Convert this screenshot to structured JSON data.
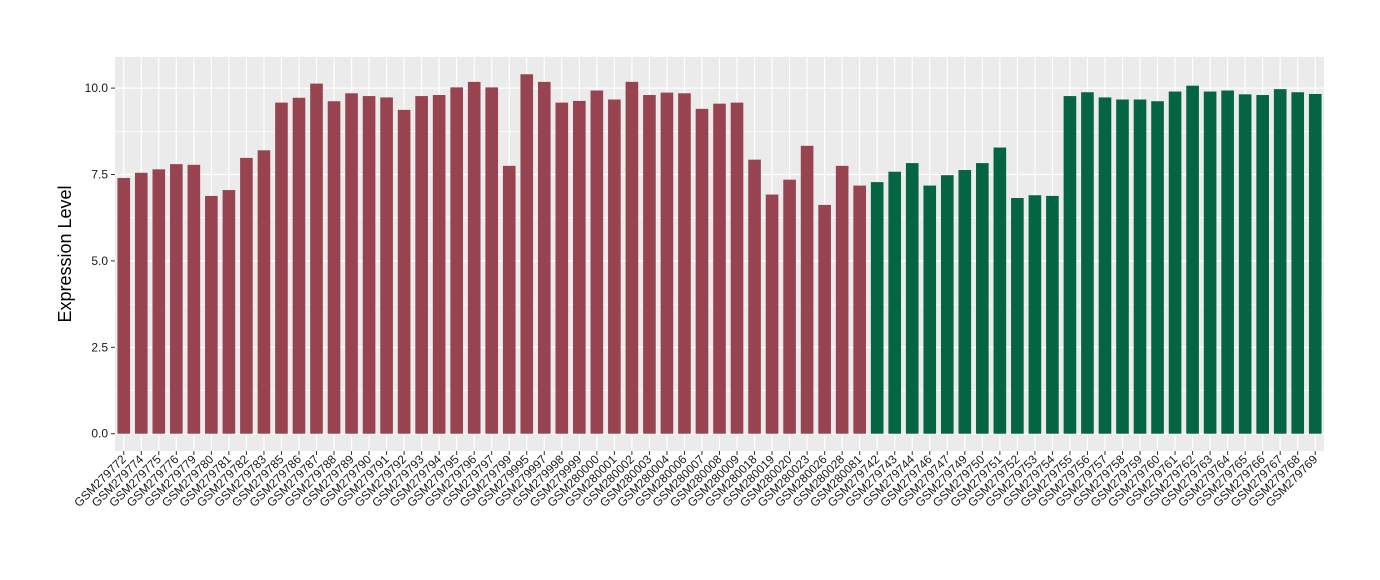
{
  "chart_data": {
    "type": "bar",
    "title": "",
    "xlabel": "",
    "ylabel": "Expression Level",
    "ylim": [
      -0.5,
      10.9
    ],
    "yticks": [
      0.0,
      2.5,
      5.0,
      7.5,
      10.0
    ],
    "ytick_labels": [
      "0.0",
      "2.5",
      "5.0",
      "7.5",
      "10.0"
    ],
    "grid": true,
    "legend": "none",
    "colors": {
      "panel": "#EBEBEB",
      "grid": "#FFFFFF",
      "group1": "#984350",
      "group2": "#046543"
    },
    "categories": [
      "GSM279772",
      "GSM279774",
      "GSM279775",
      "GSM279776",
      "GSM279779",
      "GSM279780",
      "GSM279781",
      "GSM279782",
      "GSM279783",
      "GSM279785",
      "GSM279786",
      "GSM279787",
      "GSM279788",
      "GSM279789",
      "GSM279790",
      "GSM279791",
      "GSM279792",
      "GSM279793",
      "GSM279794",
      "GSM279795",
      "GSM279796",
      "GSM279797",
      "GSM279799",
      "GSM279995",
      "GSM279997",
      "GSM279998",
      "GSM279999",
      "GSM280000",
      "GSM280001",
      "GSM280002",
      "GSM280003",
      "GSM280004",
      "GSM280006",
      "GSM280007",
      "GSM280008",
      "GSM280009",
      "GSM280018",
      "GSM280019",
      "GSM280020",
      "GSM280023",
      "GSM280026",
      "GSM280028",
      "GSM280081",
      "GSM279742",
      "GSM279743",
      "GSM279744",
      "GSM279746",
      "GSM279747",
      "GSM279749",
      "GSM279750",
      "GSM279751",
      "GSM279752",
      "GSM279753",
      "GSM279754",
      "GSM279755",
      "GSM279756",
      "GSM279757",
      "GSM279758",
      "GSM279759",
      "GSM279760",
      "GSM279761",
      "GSM279762",
      "GSM279763",
      "GSM279764",
      "GSM279765",
      "GSM279766",
      "GSM279767",
      "GSM279768",
      "GSM279769"
    ],
    "values": [
      7.4,
      7.55,
      7.65,
      7.8,
      7.78,
      6.88,
      7.05,
      7.98,
      8.2,
      9.58,
      9.72,
      10.13,
      9.62,
      9.85,
      9.77,
      9.73,
      9.37,
      9.77,
      9.8,
      10.02,
      10.18,
      10.02,
      7.75,
      10.4,
      10.18,
      9.58,
      9.63,
      9.93,
      9.67,
      10.18,
      9.8,
      9.87,
      9.85,
      9.4,
      9.55,
      9.58,
      7.93,
      6.92,
      7.35,
      8.33,
      6.62,
      7.75,
      7.18,
      7.28,
      7.58,
      7.83,
      7.18,
      7.48,
      7.63,
      7.83,
      8.28,
      6.82,
      6.9,
      6.88,
      9.77,
      9.88,
      9.73,
      9.67,
      9.67,
      9.62,
      9.9,
      10.07,
      9.9,
      9.93,
      9.82,
      9.8,
      9.97,
      9.88,
      9.83
    ],
    "group_split_index": 43
  }
}
